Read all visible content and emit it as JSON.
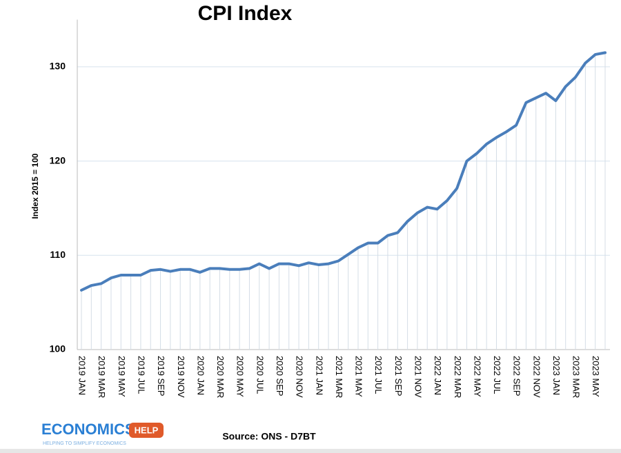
{
  "chart_data": {
    "type": "line",
    "title": "CPI Index",
    "y_label": "Index 2015 = 100",
    "source": "Source: ONS - D7BT",
    "logo": {
      "name": "ECONOMICS",
      "badge": "HELP",
      "tagline": "HELPING TO SIMPLIFY ECONOMICS"
    },
    "categories": [
      "2019 JAN",
      null,
      "2019 MAR",
      null,
      "2019 MAY",
      null,
      "2019 JUL",
      null,
      "2019 SEP",
      null,
      "2019 NOV",
      null,
      "2020 JAN",
      null,
      "2020 MAR",
      null,
      "2020 MAY",
      null,
      "2020 JUL",
      null,
      "2020 SEP",
      null,
      "2020 NOV",
      null,
      "2021 JAN",
      null,
      "2021 MAR",
      null,
      "2021 MAY",
      null,
      "2021 JUL",
      null,
      "2021 SEP",
      null,
      "2021 NOV",
      null,
      "2022 JAN",
      null,
      "2022 MAR",
      null,
      "2022 MAY",
      null,
      "2022 JUL",
      null,
      "2022 SEP",
      null,
      "2022 NOV",
      null,
      "2023 JAN",
      null,
      "2023 MAR",
      null,
      "2023 MAY",
      null
    ],
    "series": [
      {
        "name": "CPI",
        "color": "#4a7ebb",
        "values": [
          106.3,
          106.8,
          107.0,
          107.6,
          107.9,
          107.9,
          107.9,
          108.4,
          108.5,
          108.3,
          108.5,
          108.5,
          108.2,
          108.6,
          108.6,
          108.5,
          108.5,
          108.6,
          109.1,
          108.6,
          109.1,
          109.1,
          108.9,
          109.2,
          109.0,
          109.1,
          109.4,
          110.1,
          110.8,
          111.3,
          111.3,
          112.1,
          112.4,
          113.6,
          114.5,
          115.1,
          114.9,
          115.8,
          117.1,
          120.0,
          120.8,
          121.8,
          122.5,
          123.1,
          123.8,
          126.2,
          126.7,
          127.2,
          126.4,
          127.9,
          128.9,
          130.4,
          131.3,
          131.5
        ]
      }
    ],
    "ylim": [
      100,
      135
    ],
    "yticks": [
      100,
      110,
      120,
      130
    ],
    "grid": true
  }
}
